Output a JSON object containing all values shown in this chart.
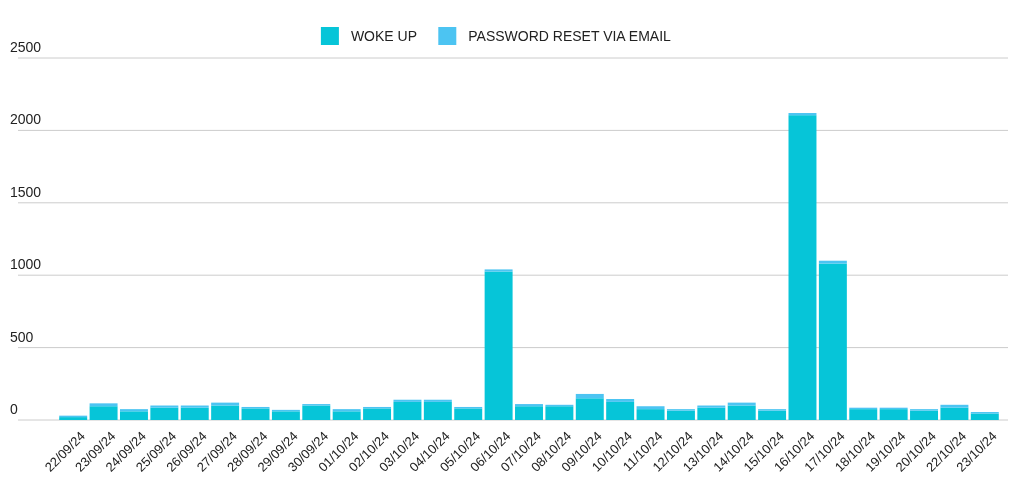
{
  "chart_data": {
    "type": "bar",
    "stacked": true,
    "categories": [
      "22/09/24",
      "23/09/24",
      "24/09/24",
      "25/09/24",
      "26/09/24",
      "27/09/24",
      "28/09/24",
      "29/09/24",
      "30/09/24",
      "01/10/24",
      "02/10/24",
      "03/10/24",
      "04/10/24",
      "05/10/24",
      "06/10/24",
      "07/10/24",
      "08/10/24",
      "09/10/24",
      "10/10/24",
      "11/10/24",
      "12/10/24",
      "13/10/24",
      "14/10/24",
      "15/10/24",
      "16/10/24",
      "17/10/24",
      "18/10/24",
      "19/10/24",
      "20/10/24",
      "22/10/24",
      "23/10/24"
    ],
    "series": [
      {
        "name": "WOKE UP",
        "color": "#06c5d8",
        "values": [
          20,
          95,
          60,
          85,
          85,
          100,
          80,
          60,
          100,
          60,
          80,
          125,
          125,
          80,
          1025,
          95,
          95,
          150,
          125,
          75,
          65,
          85,
          100,
          65,
          2105,
          1080,
          75,
          75,
          65,
          85,
          45
        ]
      },
      {
        "name": "PASSWORD RESET VIA EMAIL",
        "color": "#4cc4f2",
        "values": [
          10,
          20,
          15,
          15,
          15,
          20,
          10,
          10,
          10,
          15,
          10,
          15,
          15,
          10,
          15,
          15,
          10,
          30,
          20,
          20,
          10,
          15,
          20,
          10,
          15,
          20,
          10,
          10,
          10,
          20,
          10
        ]
      }
    ],
    "ylim": [
      0,
      2500
    ],
    "yticks": [
      0,
      500,
      1000,
      1500,
      2000,
      2500
    ],
    "grid": "y",
    "legend": "top"
  }
}
